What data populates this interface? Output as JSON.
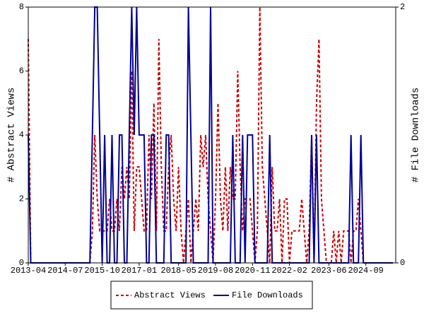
{
  "chart_data": {
    "type": "line",
    "y_label": "# Abstract Views",
    "y2_label": "# File Downloads",
    "categories": [
      "2013-04",
      null,
      null,
      null,
      null,
      null,
      null,
      null,
      null,
      null,
      null,
      null,
      null,
      null,
      null,
      "2014-07",
      null,
      null,
      null,
      null,
      null,
      null,
      null,
      null,
      null,
      null,
      null,
      null,
      null,
      null,
      "2015-10",
      null,
      null,
      null,
      null,
      null,
      null,
      null,
      null,
      null,
      null,
      null,
      null,
      null,
      null,
      "2017-01",
      null,
      null,
      null,
      null,
      null,
      null,
      null,
      null,
      null,
      null,
      null,
      null,
      null,
      null,
      null,
      "2018-05",
      null,
      null,
      null,
      null,
      null,
      null,
      null,
      null,
      null,
      null,
      null,
      null,
      null,
      null,
      "2019-08",
      null,
      null,
      null,
      null,
      null,
      null,
      null,
      null,
      null,
      null,
      null,
      null,
      null,
      null,
      "2020-11",
      null,
      null,
      null,
      null,
      null,
      null,
      null,
      null,
      null,
      null,
      null,
      null,
      null,
      null,
      "2022-02",
      null,
      null,
      null,
      null,
      null,
      null,
      null,
      null,
      null,
      null,
      null,
      null,
      null,
      null,
      null,
      "2023-06",
      null,
      null,
      null,
      null,
      null,
      null,
      null,
      null,
      null,
      null,
      null,
      null,
      null,
      null,
      "2024-09",
      null,
      null,
      null,
      null,
      null,
      null,
      null,
      null,
      null,
      null,
      null
    ],
    "series": [
      {
        "name": "Abstract Views",
        "color": "#cc0000",
        "line_style": "dashed",
        "axis": "y",
        "values": [
          7,
          0,
          0,
          0,
          0,
          0,
          0,
          0,
          0,
          0,
          0,
          0,
          0,
          0,
          0,
          0,
          0,
          0,
          0,
          0,
          0,
          0,
          0,
          0,
          0,
          0,
          1,
          4,
          2,
          1,
          1,
          1,
          1,
          2,
          1,
          1,
          2,
          1,
          3,
          2,
          3,
          2,
          6,
          1,
          3,
          3,
          2,
          1,
          1,
          4,
          2,
          5,
          1,
          7,
          3,
          1,
          1,
          3,
          4,
          2,
          1,
          3,
          1,
          0,
          1,
          2,
          0,
          1,
          2,
          1,
          4,
          3,
          4,
          2,
          1,
          0,
          2,
          5,
          2,
          1,
          3,
          1,
          3,
          2,
          2,
          6,
          3,
          1,
          2,
          2,
          2,
          1,
          0,
          1,
          8,
          3,
          2,
          1,
          0,
          3,
          1,
          1,
          2,
          0,
          2,
          2,
          0,
          1,
          1,
          1,
          1,
          2,
          1,
          0,
          1,
          4,
          0,
          5,
          7,
          2,
          1,
          0,
          0,
          0,
          1,
          0,
          1,
          0,
          1,
          1,
          1,
          0,
          1,
          1,
          2,
          1,
          0,
          0,
          0,
          0,
          0,
          0,
          0,
          0,
          0,
          0,
          0,
          0,
          0
        ]
      },
      {
        "name": "File Downloads",
        "color": "#000099",
        "line_style": "solid",
        "axis": "y2",
        "values": [
          1,
          0,
          0,
          0,
          0,
          0,
          0,
          0,
          0,
          0,
          0,
          0,
          0,
          0,
          0,
          0,
          0,
          0,
          0,
          0,
          0,
          0,
          0,
          0,
          0,
          0,
          1,
          2,
          2,
          1,
          0,
          1,
          0,
          0,
          1,
          0,
          0,
          1,
          1,
          0,
          0,
          1,
          2,
          1,
          2,
          1,
          1,
          1,
          0,
          0,
          1,
          1,
          0,
          0,
          0,
          0,
          1,
          1,
          0,
          0,
          0,
          0,
          0,
          0,
          0,
          2,
          1,
          0,
          0,
          0,
          0,
          0,
          0,
          0,
          2,
          0,
          0,
          0,
          0,
          0,
          0,
          0,
          0,
          1,
          0,
          0,
          0,
          1,
          0,
          1,
          1,
          1,
          0,
          0,
          0,
          0,
          0,
          0,
          1,
          0,
          0,
          0,
          0,
          0,
          0,
          0,
          0,
          0,
          0,
          0,
          0,
          0,
          0,
          0,
          0,
          1,
          0,
          1,
          0,
          0,
          0,
          0,
          0,
          0,
          0,
          0,
          0,
          0,
          0,
          0,
          0,
          1,
          0,
          0,
          0,
          1,
          0,
          0,
          0,
          0,
          0,
          0,
          0,
          0,
          0,
          0,
          0,
          0,
          0
        ]
      }
    ],
    "ylim": [
      0,
      8
    ],
    "yticks": [
      0,
      2,
      4,
      6,
      8
    ],
    "y2lim": [
      0,
      2
    ],
    "y2ticks": [
      0,
      2
    ],
    "legend": "bottom"
  }
}
